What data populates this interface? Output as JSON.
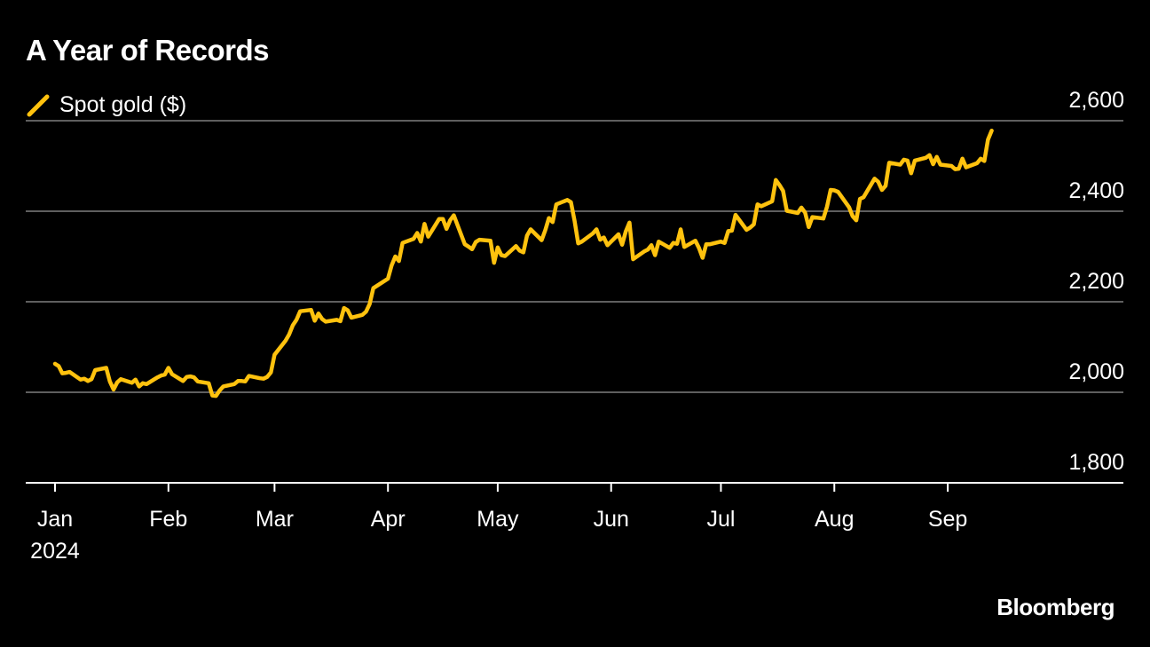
{
  "chart_data": {
    "type": "line",
    "title": "A Year of Records",
    "legend": [
      {
        "name": "Spot gold ($)",
        "color": "#ffc20e"
      }
    ],
    "brand": "Bloomberg",
    "y_ticks": [
      1800,
      2000,
      2200,
      2400,
      2600
    ],
    "y_tick_labels": [
      "1,800",
      "2,000",
      "2,200",
      "2,400",
      "2,600"
    ],
    "ylim": [
      1800,
      2600
    ],
    "grid": true,
    "legend_position": "top-left",
    "x_ticks": [
      {
        "date": "2024-01-01",
        "label": "Jan",
        "sublabel": "2024"
      },
      {
        "date": "2024-02-01",
        "label": "Feb"
      },
      {
        "date": "2024-03-01",
        "label": "Mar"
      },
      {
        "date": "2024-04-01",
        "label": "Apr"
      },
      {
        "date": "2024-05-01",
        "label": "May"
      },
      {
        "date": "2024-06-01",
        "label": "Jun"
      },
      {
        "date": "2024-07-01",
        "label": "Jul"
      },
      {
        "date": "2024-08-01",
        "label": "Aug"
      },
      {
        "date": "2024-09-01",
        "label": "Sep"
      }
    ],
    "xlim": [
      "2023-12-24",
      "2024-10-19"
    ],
    "series": [
      {
        "name": "Spot gold ($)",
        "color": "#ffc20e",
        "points": [
          [
            "2024-01-01",
            2063
          ],
          [
            "2024-01-02",
            2058
          ],
          [
            "2024-01-03",
            2042
          ],
          [
            "2024-01-04",
            2043
          ],
          [
            "2024-01-05",
            2045
          ],
          [
            "2024-01-08",
            2028
          ],
          [
            "2024-01-09",
            2030
          ],
          [
            "2024-01-10",
            2025
          ],
          [
            "2024-01-11",
            2029
          ],
          [
            "2024-01-12",
            2049
          ],
          [
            "2024-01-15",
            2054
          ],
          [
            "2024-01-16",
            2024
          ],
          [
            "2024-01-17",
            2006
          ],
          [
            "2024-01-18",
            2022
          ],
          [
            "2024-01-19",
            2029
          ],
          [
            "2024-01-22",
            2021
          ],
          [
            "2024-01-23",
            2028
          ],
          [
            "2024-01-24",
            2013
          ],
          [
            "2024-01-25",
            2020
          ],
          [
            "2024-01-26",
            2018
          ],
          [
            "2024-01-29",
            2033
          ],
          [
            "2024-01-30",
            2037
          ],
          [
            "2024-01-31",
            2039
          ],
          [
            "2024-02-01",
            2054
          ],
          [
            "2024-02-02",
            2040
          ],
          [
            "2024-02-05",
            2025
          ],
          [
            "2024-02-06",
            2034
          ],
          [
            "2024-02-07",
            2035
          ],
          [
            "2024-02-08",
            2033
          ],
          [
            "2024-02-09",
            2024
          ],
          [
            "2024-02-12",
            2020
          ],
          [
            "2024-02-13",
            1993
          ],
          [
            "2024-02-14",
            1992
          ],
          [
            "2024-02-15",
            2004
          ],
          [
            "2024-02-16",
            2013
          ],
          [
            "2024-02-19",
            2018
          ],
          [
            "2024-02-20",
            2025
          ],
          [
            "2024-02-21",
            2025
          ],
          [
            "2024-02-22",
            2024
          ],
          [
            "2024-02-23",
            2036
          ],
          [
            "2024-02-26",
            2031
          ],
          [
            "2024-02-27",
            2030
          ],
          [
            "2024-02-28",
            2034
          ],
          [
            "2024-02-29",
            2044
          ],
          [
            "2024-03-01",
            2083
          ],
          [
            "2024-03-04",
            2114
          ],
          [
            "2024-03-05",
            2128
          ],
          [
            "2024-03-06",
            2148
          ],
          [
            "2024-03-07",
            2160
          ],
          [
            "2024-03-08",
            2179
          ],
          [
            "2024-03-11",
            2182
          ],
          [
            "2024-03-12",
            2158
          ],
          [
            "2024-03-13",
            2174
          ],
          [
            "2024-03-14",
            2162
          ],
          [
            "2024-03-15",
            2156
          ],
          [
            "2024-03-18",
            2160
          ],
          [
            "2024-03-19",
            2157
          ],
          [
            "2024-03-20",
            2186
          ],
          [
            "2024-03-21",
            2181
          ],
          [
            "2024-03-22",
            2165
          ],
          [
            "2024-03-25",
            2171
          ],
          [
            "2024-03-26",
            2178
          ],
          [
            "2024-03-27",
            2195
          ],
          [
            "2024-03-28",
            2230
          ],
          [
            "2024-04-01",
            2251
          ],
          [
            "2024-04-02",
            2280
          ],
          [
            "2024-04-03",
            2300
          ],
          [
            "2024-04-04",
            2290
          ],
          [
            "2024-04-05",
            2330
          ],
          [
            "2024-04-08",
            2339
          ],
          [
            "2024-04-09",
            2352
          ],
          [
            "2024-04-10",
            2333
          ],
          [
            "2024-04-11",
            2372
          ],
          [
            "2024-04-12",
            2344
          ],
          [
            "2024-04-15",
            2383
          ],
          [
            "2024-04-16",
            2383
          ],
          [
            "2024-04-17",
            2361
          ],
          [
            "2024-04-18",
            2380
          ],
          [
            "2024-04-19",
            2391
          ],
          [
            "2024-04-22",
            2327
          ],
          [
            "2024-04-23",
            2322
          ],
          [
            "2024-04-24",
            2316
          ],
          [
            "2024-04-25",
            2332
          ],
          [
            "2024-04-26",
            2337
          ],
          [
            "2024-04-29",
            2335
          ],
          [
            "2024-04-30",
            2286
          ],
          [
            "2024-05-01",
            2320
          ],
          [
            "2024-05-02",
            2303
          ],
          [
            "2024-05-03",
            2301
          ],
          [
            "2024-05-06",
            2323
          ],
          [
            "2024-05-07",
            2313
          ],
          [
            "2024-05-08",
            2309
          ],
          [
            "2024-05-09",
            2346
          ],
          [
            "2024-05-10",
            2360
          ],
          [
            "2024-05-13",
            2336
          ],
          [
            "2024-05-14",
            2358
          ],
          [
            "2024-05-15",
            2385
          ],
          [
            "2024-05-16",
            2376
          ],
          [
            "2024-05-17",
            2415
          ],
          [
            "2024-05-20",
            2425
          ],
          [
            "2024-05-21",
            2420
          ],
          [
            "2024-05-22",
            2379
          ],
          [
            "2024-05-23",
            2329
          ],
          [
            "2024-05-24",
            2333
          ],
          [
            "2024-05-27",
            2351
          ],
          [
            "2024-05-28",
            2360
          ],
          [
            "2024-05-29",
            2337
          ],
          [
            "2024-05-30",
            2342
          ],
          [
            "2024-05-31",
            2325
          ],
          [
            "2024-06-03",
            2349
          ],
          [
            "2024-06-04",
            2326
          ],
          [
            "2024-06-05",
            2355
          ],
          [
            "2024-06-06",
            2375
          ],
          [
            "2024-06-07",
            2294
          ],
          [
            "2024-06-10",
            2311
          ],
          [
            "2024-06-11",
            2315
          ],
          [
            "2024-06-12",
            2325
          ],
          [
            "2024-06-13",
            2303
          ],
          [
            "2024-06-14",
            2333
          ],
          [
            "2024-06-17",
            2319
          ],
          [
            "2024-06-18",
            2330
          ],
          [
            "2024-06-19",
            2328
          ],
          [
            "2024-06-20",
            2360
          ],
          [
            "2024-06-21",
            2321
          ],
          [
            "2024-06-24",
            2335
          ],
          [
            "2024-06-25",
            2319
          ],
          [
            "2024-06-26",
            2297
          ],
          [
            "2024-06-27",
            2327
          ],
          [
            "2024-06-28",
            2327
          ],
          [
            "2024-07-01",
            2333
          ],
          [
            "2024-07-02",
            2330
          ],
          [
            "2024-07-03",
            2356
          ],
          [
            "2024-07-04",
            2357
          ],
          [
            "2024-07-05",
            2392
          ],
          [
            "2024-07-08",
            2359
          ],
          [
            "2024-07-09",
            2364
          ],
          [
            "2024-07-10",
            2371
          ],
          [
            "2024-07-11",
            2415
          ],
          [
            "2024-07-12",
            2411
          ],
          [
            "2024-07-15",
            2422
          ],
          [
            "2024-07-16",
            2469
          ],
          [
            "2024-07-17",
            2458
          ],
          [
            "2024-07-18",
            2445
          ],
          [
            "2024-07-19",
            2401
          ],
          [
            "2024-07-22",
            2396
          ],
          [
            "2024-07-23",
            2408
          ],
          [
            "2024-07-24",
            2397
          ],
          [
            "2024-07-25",
            2365
          ],
          [
            "2024-07-26",
            2387
          ],
          [
            "2024-07-29",
            2384
          ],
          [
            "2024-07-30",
            2410
          ],
          [
            "2024-07-31",
            2447
          ],
          [
            "2024-08-01",
            2446
          ],
          [
            "2024-08-02",
            2443
          ],
          [
            "2024-08-05",
            2409
          ],
          [
            "2024-08-06",
            2389
          ],
          [
            "2024-08-07",
            2380
          ],
          [
            "2024-08-08",
            2427
          ],
          [
            "2024-08-09",
            2431
          ],
          [
            "2024-08-12",
            2472
          ],
          [
            "2024-08-13",
            2465
          ],
          [
            "2024-08-14",
            2447
          ],
          [
            "2024-08-15",
            2456
          ],
          [
            "2024-08-16",
            2507
          ],
          [
            "2024-08-19",
            2503
          ],
          [
            "2024-08-20",
            2514
          ],
          [
            "2024-08-21",
            2512
          ],
          [
            "2024-08-22",
            2484
          ],
          [
            "2024-08-23",
            2512
          ],
          [
            "2024-08-26",
            2518
          ],
          [
            "2024-08-27",
            2524
          ],
          [
            "2024-08-28",
            2504
          ],
          [
            "2024-08-29",
            2520
          ],
          [
            "2024-08-30",
            2503
          ],
          [
            "2024-09-02",
            2500
          ],
          [
            "2024-09-03",
            2493
          ],
          [
            "2024-09-04",
            2494
          ],
          [
            "2024-09-05",
            2516
          ],
          [
            "2024-09-06",
            2497
          ],
          [
            "2024-09-09",
            2506
          ],
          [
            "2024-09-10",
            2516
          ],
          [
            "2024-09-11",
            2511
          ],
          [
            "2024-09-12",
            2558
          ],
          [
            "2024-09-13",
            2578
          ]
        ]
      }
    ]
  }
}
